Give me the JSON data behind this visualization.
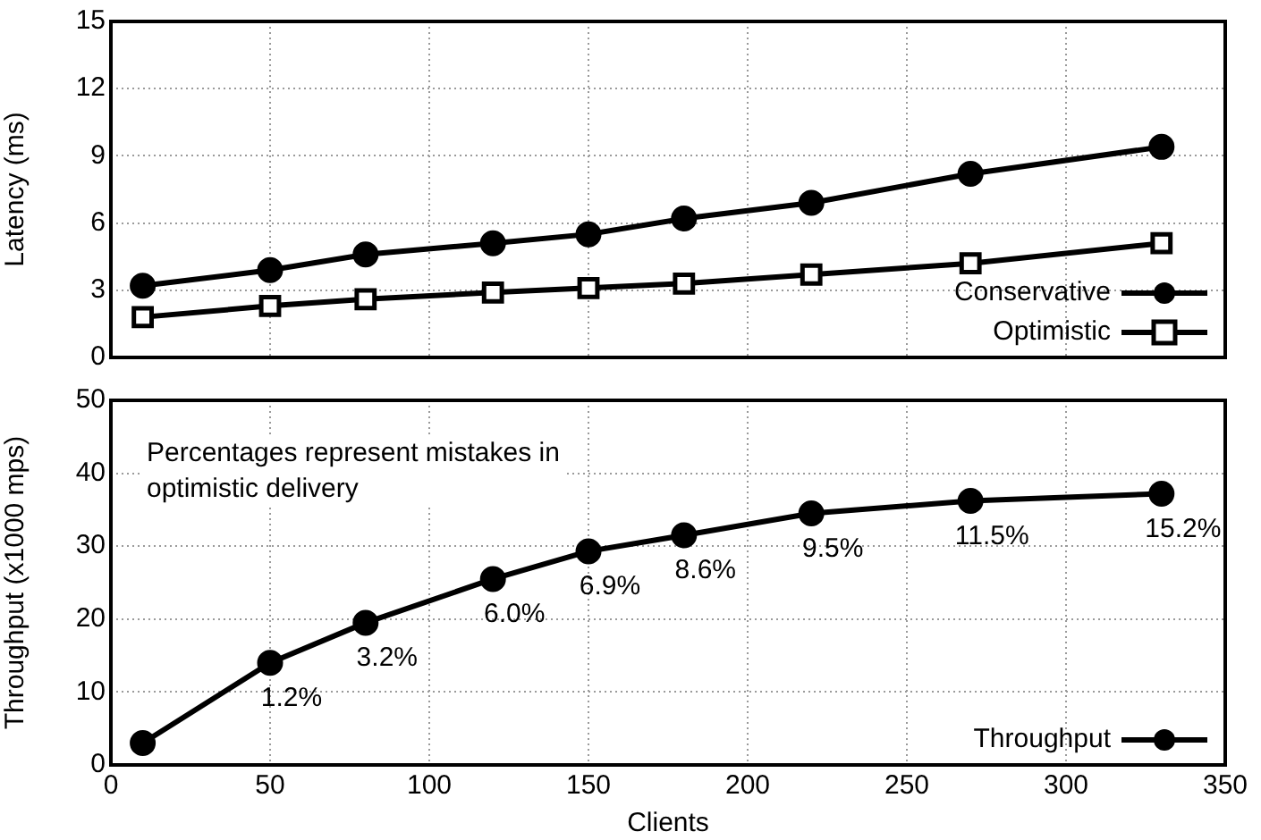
{
  "chart_data": [
    {
      "type": "line",
      "ylabel": "Latency (ms)",
      "x": [
        10,
        50,
        80,
        120,
        150,
        180,
        220,
        270,
        330
      ],
      "xlim": [
        0,
        350
      ],
      "xticks": [
        0,
        50,
        100,
        150,
        200,
        250,
        300,
        350
      ],
      "ylim": [
        0,
        15
      ],
      "yticks": [
        0,
        3,
        6,
        9,
        12,
        15
      ],
      "tick_labels": "y",
      "grid": true,
      "legend": "bottom right",
      "series": [
        {
          "name": "Conservative",
          "color": "#000000",
          "marker": "circle",
          "values": [
            3.2,
            3.9,
            4.6,
            5.1,
            5.5,
            6.2,
            6.9,
            8.2,
            9.4
          ]
        },
        {
          "name": "Optimistic",
          "color": "#000000",
          "marker": "square",
          "values": [
            1.8,
            2.3,
            2.6,
            2.9,
            3.1,
            3.3,
            3.7,
            4.2,
            5.1
          ]
        }
      ]
    },
    {
      "type": "line",
      "xlabel": "Clients",
      "ylabel": "Throughput (x1000 mps)",
      "x": [
        10,
        50,
        80,
        120,
        150,
        180,
        220,
        270,
        330
      ],
      "xlim": [
        0,
        350
      ],
      "xticks": [
        0,
        50,
        100,
        150,
        200,
        250,
        300,
        350
      ],
      "ylim": [
        0,
        50
      ],
      "yticks": [
        0,
        10,
        20,
        30,
        40,
        50
      ],
      "grid": true,
      "legend": "bottom right",
      "annotations": [
        "Percentages represent mistakes in optimistic delivery",
        {
          "text": "1.2%",
          "x": 50,
          "y": 14
        },
        {
          "text": "3.2%",
          "x": 80,
          "y": 19.5
        },
        {
          "text": "6.0%",
          "x": 120,
          "y": 25.5
        },
        {
          "text": "6.9%",
          "x": 150,
          "y": 29.3
        },
        {
          "text": "8.6%",
          "x": 180,
          "y": 31.5
        },
        {
          "text": "9.5%",
          "x": 220,
          "y": 34.5
        },
        {
          "text": "11.5%",
          "x": 270,
          "y": 36.2
        },
        {
          "text": "15.2%",
          "x": 330,
          "y": 37.2
        }
      ],
      "series": [
        {
          "name": "Throughput",
          "color": "#000000",
          "marker": "circle",
          "values": [
            3,
            14,
            19.5,
            25.5,
            29.3,
            31.5,
            34.5,
            36.2,
            37.2
          ]
        }
      ]
    }
  ]
}
